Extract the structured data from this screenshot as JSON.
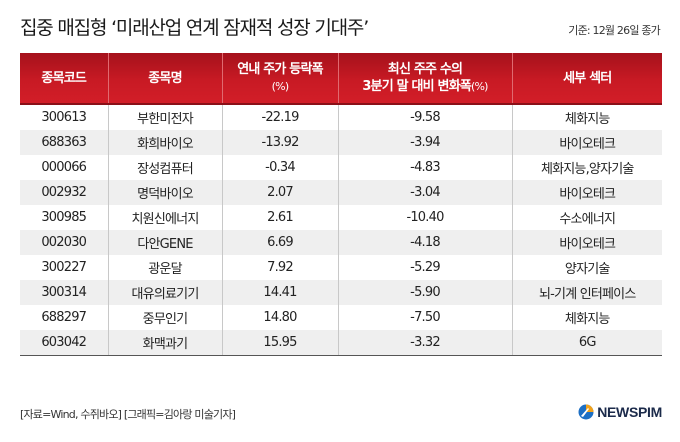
{
  "header": {
    "title": "집중 매집형 ‘미래산업 연계 잠재적 성장 기대주’",
    "basis": "기준: 12월 26일 종가"
  },
  "colors": {
    "header_red": "#c81a24",
    "header_red_dark": "#a5111b",
    "row_alt": "#efefef",
    "logo_blue": "#1d6fc4",
    "logo_orange": "#f2a21b"
  },
  "table": {
    "columns": [
      {
        "label": "종목코드",
        "sub": ""
      },
      {
        "label": "종목명",
        "sub": ""
      },
      {
        "label": "연내 주가 등락폭",
        "sub": "(%)"
      },
      {
        "label": "최신 주주 수의",
        "label2": "3분기 말 대비 변화폭",
        "sub": "(%)"
      },
      {
        "label": "세부 섹터",
        "sub": ""
      }
    ],
    "rows": [
      {
        "code": "300613",
        "name": "부한미전자",
        "ytd": "-22.19",
        "holders": "-9.58",
        "sector": "체화지능"
      },
      {
        "code": "688363",
        "name": "화희바이오",
        "ytd": "-13.92",
        "holders": "-3.94",
        "sector": "바이오테크"
      },
      {
        "code": "000066",
        "name": "장성컴퓨터",
        "ytd": "-0.34",
        "holders": "-4.83",
        "sector": "체화지능,양자기술"
      },
      {
        "code": "002932",
        "name": "명덕바이오",
        "ytd": "2.07",
        "holders": "-3.04",
        "sector": "바이오테크"
      },
      {
        "code": "300985",
        "name": "치원신에너지",
        "ytd": "2.61",
        "holders": "-10.40",
        "sector": "수소에너지"
      },
      {
        "code": "002030",
        "name": "다안GENE",
        "ytd": "6.69",
        "holders": "-4.18",
        "sector": "바이오테크"
      },
      {
        "code": "300227",
        "name": "광운달",
        "ytd": "7.92",
        "holders": "-5.29",
        "sector": "양자기술"
      },
      {
        "code": "300314",
        "name": "대유의료기기",
        "ytd": "14.41",
        "holders": "-5.90",
        "sector": "뇌-기계 인터페이스"
      },
      {
        "code": "688297",
        "name": "중무인기",
        "ytd": "14.80",
        "holders": "-7.50",
        "sector": "체화지능"
      },
      {
        "code": "603042",
        "name": "화맥과기",
        "ytd": "15.95",
        "holders": "-3.32",
        "sector": "6G"
      }
    ]
  },
  "footer": {
    "source": "[자료=Wind, 수쥐바오] [그래픽=김아랑 미술기자]",
    "logo_text": "NEWSPIM",
    "logo_icon": "newspim-logo-icon"
  }
}
